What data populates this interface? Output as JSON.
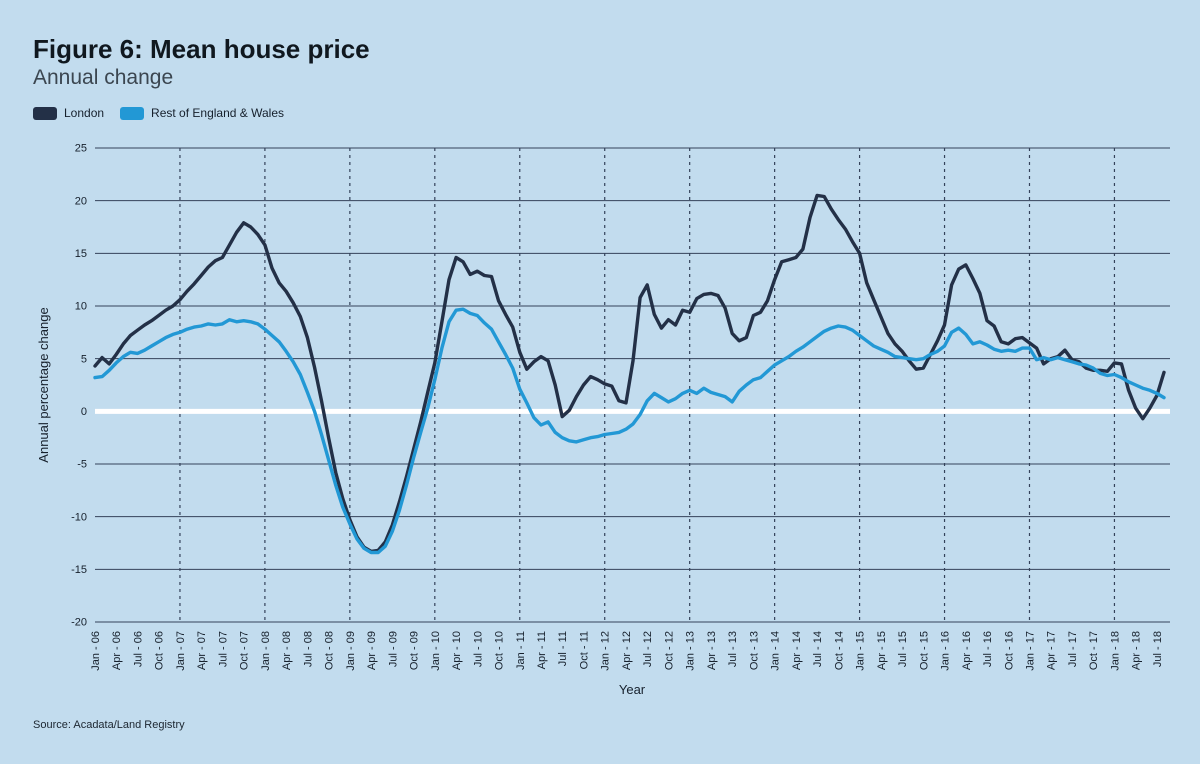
{
  "figure": {
    "title": "Figure 6: Mean house price",
    "subtitle": "Annual change",
    "source": "Source: Acadata/Land Registry"
  },
  "colors": {
    "background": "#c2dcee",
    "gridline": "#34425a",
    "zero_line": "#ffffff",
    "text": "#16202c",
    "london": "#233047",
    "rest_of_england_wales": "#2298d5"
  },
  "chart_data": {
    "type": "line",
    "title": "Figure 6: Mean house price",
    "subtitle": "Annual change",
    "xlabel": "Year",
    "ylabel": "Annual percentage change",
    "ylim": [
      -20,
      25
    ],
    "ytick_step": 5,
    "yticks": [
      25,
      20,
      15,
      10,
      5,
      0,
      -5,
      -10,
      -15,
      -20
    ],
    "grid": {
      "horizontal": "solid",
      "vertical": "dashed at each January",
      "zero_line": "thick white"
    },
    "legend_position": "top-left",
    "x_label_every": 3,
    "x": [
      "Jan - 06",
      "Feb - 06",
      "Mar - 06",
      "Apr - 06",
      "May - 06",
      "Jun - 06",
      "Jul - 06",
      "Aug - 06",
      "Sep - 06",
      "Oct - 06",
      "Nov - 06",
      "Dec - 06",
      "Jan - 07",
      "Feb - 07",
      "Mar - 07",
      "Apr - 07",
      "May - 07",
      "Jun - 07",
      "Jul - 07",
      "Aug - 07",
      "Sep - 07",
      "Oct - 07",
      "Nov - 07",
      "Dec - 07",
      "Jan - 08",
      "Feb - 08",
      "Mar - 08",
      "Apr - 08",
      "May - 08",
      "Jun - 08",
      "Jul - 08",
      "Aug - 08",
      "Sep - 08",
      "Oct - 08",
      "Nov - 08",
      "Dec - 08",
      "Jan - 09",
      "Feb - 09",
      "Mar - 09",
      "Apr - 09",
      "May - 09",
      "Jun - 09",
      "Jul - 09",
      "Aug - 09",
      "Sep - 09",
      "Oct - 09",
      "Nov - 09",
      "Dec - 09",
      "Jan - 10",
      "Feb - 10",
      "Mar - 10",
      "Apr - 10",
      "May - 10",
      "Jun - 10",
      "Jul - 10",
      "Aug - 10",
      "Sep - 10",
      "Oct - 10",
      "Nov - 10",
      "Dec - 10",
      "Jan - 11",
      "Feb - 11",
      "Mar - 11",
      "Apr - 11",
      "May - 11",
      "Jun - 11",
      "Jul - 11",
      "Aug - 11",
      "Sep - 11",
      "Oct - 11",
      "Nov - 11",
      "Dec - 11",
      "Jan - 12",
      "Feb - 12",
      "Mar - 12",
      "Apr - 12",
      "May - 12",
      "Jun - 12",
      "Jul - 12",
      "Aug - 12",
      "Sep - 12",
      "Oct - 12",
      "Nov - 12",
      "Dec - 12",
      "Jan - 13",
      "Feb - 13",
      "Mar - 13",
      "Apr - 13",
      "May - 13",
      "Jun - 13",
      "Jul - 13",
      "Aug - 13",
      "Sep - 13",
      "Oct - 13",
      "Nov - 13",
      "Dec - 13",
      "Jan - 14",
      "Feb - 14",
      "Mar - 14",
      "Apr - 14",
      "May - 14",
      "Jun - 14",
      "Jul - 14",
      "Aug - 14",
      "Sep - 14",
      "Oct - 14",
      "Nov - 14",
      "Dec - 14",
      "Jan - 15",
      "Feb - 15",
      "Mar - 15",
      "Apr - 15",
      "May - 15",
      "Jun - 15",
      "Jul - 15",
      "Aug - 15",
      "Sep - 15",
      "Oct - 15",
      "Nov - 15",
      "Dec - 15",
      "Jan - 16",
      "Feb - 16",
      "Mar - 16",
      "Apr - 16",
      "May - 16",
      "Jun - 16",
      "Jul - 16",
      "Aug - 16",
      "Sep - 16",
      "Oct - 16",
      "Nov - 16",
      "Dec - 16",
      "Jan - 17",
      "Feb - 17",
      "Mar - 17",
      "Apr - 17",
      "May - 17",
      "Jun - 17",
      "Jul - 17",
      "Aug - 17",
      "Sep - 17",
      "Oct - 17",
      "Nov - 17",
      "Dec - 17",
      "Jan - 18",
      "Feb - 18",
      "Mar - 18",
      "Apr - 18",
      "May - 18",
      "Jun - 18",
      "Jul - 18",
      "Aug - 18"
    ],
    "series": [
      {
        "name": "London",
        "color": "#233047",
        "values": [
          4.3,
          5.1,
          4.5,
          5.4,
          6.4,
          7.2,
          7.7,
          8.2,
          8.6,
          9.1,
          9.6,
          10.0,
          10.6,
          11.4,
          12.1,
          12.9,
          13.7,
          14.3,
          14.6,
          15.8,
          17.0,
          17.9,
          17.5,
          16.8,
          15.8,
          13.6,
          12.2,
          11.4,
          10.3,
          9.0,
          7.0,
          4.2,
          1.0,
          -2.5,
          -5.8,
          -8.3,
          -10.3,
          -11.9,
          -12.9,
          -13.3,
          -13.2,
          -12.4,
          -10.8,
          -8.6,
          -6.2,
          -3.6,
          -1.0,
          1.8,
          4.6,
          8.5,
          12.5,
          14.6,
          14.2,
          13.0,
          13.3,
          12.9,
          12.8,
          10.5,
          9.2,
          8.0,
          5.6,
          4.0,
          4.7,
          5.2,
          4.8,
          2.5,
          -0.5,
          0.1,
          1.4,
          2.5,
          3.3,
          3.0,
          2.6,
          2.4,
          1.0,
          0.8,
          4.8,
          10.8,
          12.0,
          9.2,
          7.9,
          8.7,
          8.2,
          9.6,
          9.4,
          10.7,
          11.1,
          11.2,
          11.0,
          9.8,
          7.4,
          6.7,
          7.0,
          9.1,
          9.4,
          10.5,
          12.5,
          14.2,
          14.4,
          14.6,
          15.4,
          18.4,
          20.5,
          20.4,
          19.2,
          18.2,
          17.3,
          16.1,
          15.0,
          12.2,
          10.6,
          9.0,
          7.4,
          6.4,
          5.7,
          4.8,
          4.0,
          4.1,
          5.4,
          6.7,
          8.2,
          12.0,
          13.5,
          13.9,
          12.6,
          11.2,
          8.6,
          8.1,
          6.6,
          6.4,
          6.9,
          7.0,
          6.5,
          6.0,
          4.5,
          5.0,
          5.2,
          5.8,
          4.9,
          4.7,
          4.1,
          3.9,
          3.9,
          3.8,
          4.6,
          4.5,
          2.0,
          0.3,
          -0.7,
          0.3,
          1.5,
          3.7
        ]
      },
      {
        "name": "Rest of England & Wales",
        "color": "#2298d5",
        "values": [
          3.2,
          3.3,
          3.9,
          4.6,
          5.2,
          5.6,
          5.5,
          5.8,
          6.2,
          6.6,
          7.0,
          7.3,
          7.5,
          7.8,
          8.0,
          8.1,
          8.3,
          8.2,
          8.3,
          8.7,
          8.5,
          8.6,
          8.5,
          8.3,
          7.8,
          7.2,
          6.6,
          5.7,
          4.7,
          3.5,
          1.8,
          0.0,
          -2.2,
          -4.6,
          -7.0,
          -9.1,
          -10.7,
          -12.1,
          -13.0,
          -13.4,
          -13.4,
          -12.8,
          -11.4,
          -9.4,
          -7.0,
          -4.4,
          -2.0,
          0.3,
          3.0,
          6.0,
          8.5,
          9.6,
          9.7,
          9.3,
          9.1,
          8.4,
          7.8,
          6.6,
          5.4,
          4.1,
          2.1,
          0.8,
          -0.6,
          -1.3,
          -1.0,
          -2.0,
          -2.5,
          -2.8,
          -2.9,
          -2.7,
          -2.5,
          -2.4,
          -2.2,
          -2.1,
          -2.0,
          -1.7,
          -1.2,
          -0.3,
          1.0,
          1.7,
          1.3,
          0.9,
          1.2,
          1.7,
          2.0,
          1.7,
          2.2,
          1.8,
          1.6,
          1.4,
          0.9,
          1.9,
          2.5,
          3.0,
          3.2,
          3.8,
          4.4,
          4.8,
          5.2,
          5.7,
          6.1,
          6.6,
          7.1,
          7.6,
          7.9,
          8.1,
          8.0,
          7.7,
          7.2,
          6.7,
          6.2,
          5.9,
          5.6,
          5.2,
          5.1,
          5.0,
          4.9,
          5.0,
          5.4,
          5.7,
          6.2,
          7.5,
          7.9,
          7.3,
          6.4,
          6.6,
          6.3,
          5.9,
          5.7,
          5.8,
          5.7,
          6.0,
          6.0,
          4.9,
          5.1,
          4.9,
          5.1,
          4.9,
          4.7,
          4.5,
          4.4,
          4.1,
          3.6,
          3.4,
          3.5,
          3.2,
          2.8,
          2.5,
          2.2,
          2.0,
          1.7,
          1.3
        ]
      }
    ]
  }
}
